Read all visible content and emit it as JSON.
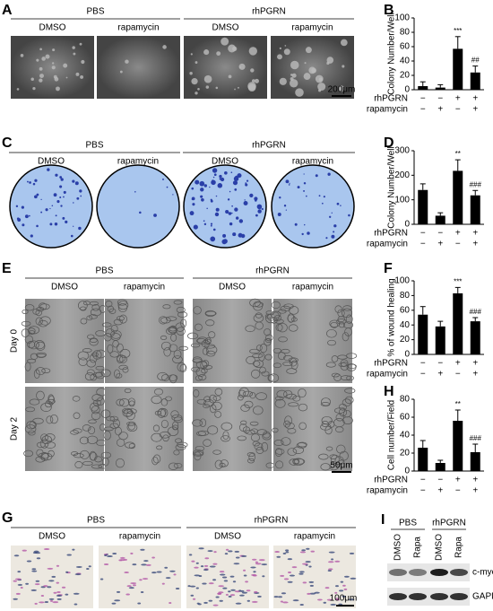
{
  "panel_labels": [
    "A",
    "B",
    "C",
    "D",
    "E",
    "F",
    "G",
    "H",
    "I"
  ],
  "panel_a": {
    "groups": [
      "PBS",
      "rhPGRN"
    ],
    "treatments": [
      "DMSO",
      "rapamycin",
      "DMSO",
      "rapamycin"
    ],
    "scale_bar": "200μm"
  },
  "panel_c": {
    "groups": [
      "PBS",
      "rhPGRN"
    ],
    "treatments": [
      "DMSO",
      "rapamycin",
      "DMSO",
      "rapamycin"
    ]
  },
  "panel_e": {
    "groups": [
      "PBS",
      "rhPGRN"
    ],
    "treatments": [
      "DMSO",
      "rapamycin",
      "DMSO",
      "rapamycin"
    ],
    "rows": [
      "Day 0",
      "Day 2"
    ],
    "scale_bar": "50μm"
  },
  "panel_g": {
    "groups": [
      "PBS",
      "rhPGRN"
    ],
    "treatments": [
      "DMSO",
      "rapamycin",
      "DMSO",
      "rapamycin"
    ],
    "scale_bar": "100μm"
  },
  "panel_i": {
    "groups": [
      "PBS",
      "rhPGRN"
    ],
    "lanes": [
      "DMSO",
      "Rapa",
      "DMSO",
      "Rapa"
    ],
    "bands": [
      "c-myc",
      "GAPDH"
    ]
  },
  "chart_data": [
    {
      "type": "bar",
      "ylabel": "Colony Number/Well",
      "color": "#000000",
      "values": [
        5,
        3,
        57,
        24
      ],
      "errors": [
        6,
        4,
        17,
        9
      ],
      "annotations": [
        null,
        null,
        "***",
        "##"
      ],
      "ylim": [
        0,
        100
      ],
      "yticks": [
        0,
        20,
        40,
        60,
        80,
        100
      ],
      "treatment_rows": [
        {
          "name": "rhPGRN",
          "signs": [
            "−",
            "−",
            "+",
            "+"
          ]
        },
        {
          "name": "rapamycin",
          "signs": [
            "−",
            "+",
            "−",
            "+"
          ]
        }
      ]
    },
    {
      "type": "bar",
      "ylabel": "Colony Number/Well",
      "color": "#000000",
      "values": [
        140,
        35,
        218,
        118
      ],
      "errors": [
        25,
        12,
        45,
        20
      ],
      "annotations": [
        null,
        null,
        "**",
        "###"
      ],
      "ylim": [
        0,
        300
      ],
      "yticks": [
        0,
        100,
        200,
        300
      ],
      "treatment_rows": [
        {
          "name": "rhPGRN",
          "signs": [
            "−",
            "−",
            "+",
            "+"
          ]
        },
        {
          "name": "rapamycin",
          "signs": [
            "−",
            "+",
            "−",
            "+"
          ]
        }
      ]
    },
    {
      "type": "bar",
      "ylabel": "% of wound healing",
      "color": "#000000",
      "values": [
        54,
        38,
        83,
        45
      ],
      "errors": [
        11,
        7,
        8,
        5
      ],
      "annotations": [
        null,
        null,
        "***",
        "###"
      ],
      "ylim": [
        0,
        100
      ],
      "yticks": [
        0,
        20,
        40,
        60,
        80,
        100
      ],
      "treatment_rows": [
        {
          "name": "rhPGRN",
          "signs": [
            "−",
            "−",
            "+",
            "+"
          ]
        },
        {
          "name": "rapamycin",
          "signs": [
            "−",
            "+",
            "−",
            "+"
          ]
        }
      ]
    },
    {
      "type": "bar",
      "ylabel": "Cell number/Field",
      "color": "#000000",
      "values": [
        26,
        9,
        56,
        21
      ],
      "errors": [
        8,
        3,
        12,
        9
      ],
      "annotations": [
        null,
        null,
        "**",
        "###"
      ],
      "ylim": [
        0,
        80
      ],
      "yticks": [
        0,
        20,
        40,
        60,
        80
      ],
      "treatment_rows": [
        {
          "name": "rhPGRN",
          "signs": [
            "−",
            "−",
            "+",
            "+"
          ]
        },
        {
          "name": "rapamycin",
          "signs": [
            "−",
            "+",
            "−",
            "+"
          ]
        }
      ]
    }
  ]
}
